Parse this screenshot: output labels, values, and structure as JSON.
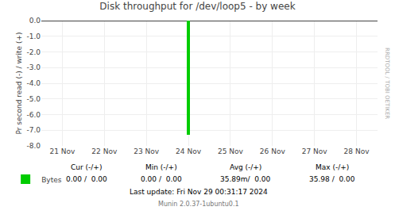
{
  "chart_data": {
    "type": "bar",
    "title": "Disk throughput for /dev/loop5 - by week",
    "ylabel": "Pr second read (-) / write (+)",
    "categories": [
      "21 Nov",
      "22 Nov",
      "23 Nov",
      "24 Nov",
      "25 Nov",
      "26 Nov",
      "27 Nov",
      "28 Nov"
    ],
    "series": [
      {
        "name": "Bytes",
        "color": "#00cc00",
        "values": [
          null,
          null,
          null,
          -7.3,
          null,
          null,
          null,
          null
        ]
      }
    ],
    "ylim": [
      -8.0,
      0.0
    ],
    "yticks": [
      {
        "value": 0.0,
        "label": "0.0"
      },
      {
        "value": -1.0,
        "label": "-1.0"
      },
      {
        "value": -2.0,
        "label": "-2.0"
      },
      {
        "value": -3.0,
        "label": "-3.0"
      },
      {
        "value": -4.0,
        "label": "-4.0"
      },
      {
        "value": -5.0,
        "label": "-5.0"
      },
      {
        "value": -6.0,
        "label": "-6.0"
      },
      {
        "value": -7.0,
        "label": "-7.0"
      },
      {
        "value": -8.0,
        "label": "-8.0"
      }
    ],
    "grid": true,
    "legend": "lower left",
    "annotations": [
      "Cur (-/+)",
      "Min (-/+)",
      "Avg (-/+)",
      "Max (-/+)",
      "0.00 /  0.00",
      "0.00 /  0.00",
      "35.89m/  0.00",
      "35.98 /  0.00",
      "Last update: Fri Nov 29 00:31:17 2024",
      "Munin 2.0.37-1ubuntu0.1",
      "RRDTOOL / TOBI OETIKER"
    ]
  }
}
